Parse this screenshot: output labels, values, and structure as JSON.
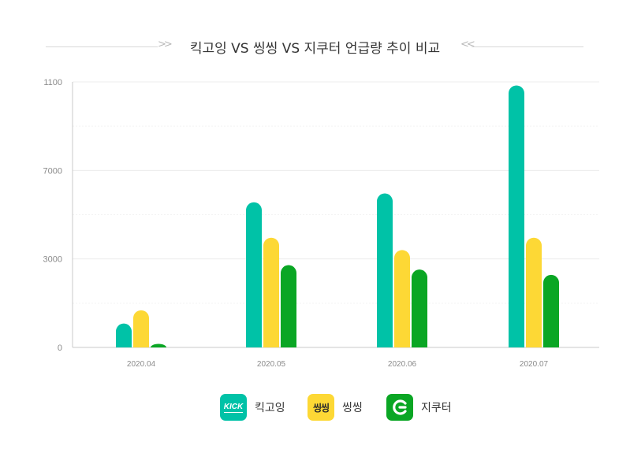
{
  "chart": {
    "title": "킥고잉 VS 씽씽 VS 지쿠터 언급량 추이 비교"
  },
  "chart_data": {
    "type": "bar",
    "title": "킥고잉 VS 씽씽 VS 지쿠터 언급량 추이 비교",
    "xlabel": "",
    "ylabel": "",
    "categories": [
      "2020.04",
      "2020.05",
      "2020.06",
      "2020.07"
    ],
    "y_ticks": [
      {
        "label": "0",
        "value": 0
      },
      {
        "label": "3000",
        "value": 1
      },
      {
        "label": "7000",
        "value": 2
      },
      {
        "label": "1100",
        "value": 3
      }
    ],
    "ylim": [
      0,
      3
    ],
    "grid": true,
    "legend_position": "bottom",
    "series": [
      {
        "name": "킥고잉",
        "color": "#00c2a7",
        "values": [
          0.27,
          1.64,
          1.74,
          2.96
        ]
      },
      {
        "name": "씽씽",
        "color": "#fdd835",
        "values": [
          0.42,
          1.24,
          1.1,
          1.24
        ]
      },
      {
        "name": "지쿠터",
        "color": "#0aa624",
        "values": [
          0.04,
          0.93,
          0.88,
          0.82
        ]
      }
    ]
  },
  "legend": {
    "items": [
      {
        "label": "킥고잉",
        "icon": "kick-logo-icon",
        "icon_text": "KICK",
        "color": "#00c2a7"
      },
      {
        "label": "씽씽",
        "icon": "ssing-logo-icon",
        "icon_text": "씽씽",
        "color": "#fdd835"
      },
      {
        "label": "지쿠터",
        "icon": "gcooter-logo-icon",
        "icon_text": "",
        "color": "#0aa624"
      }
    ]
  }
}
